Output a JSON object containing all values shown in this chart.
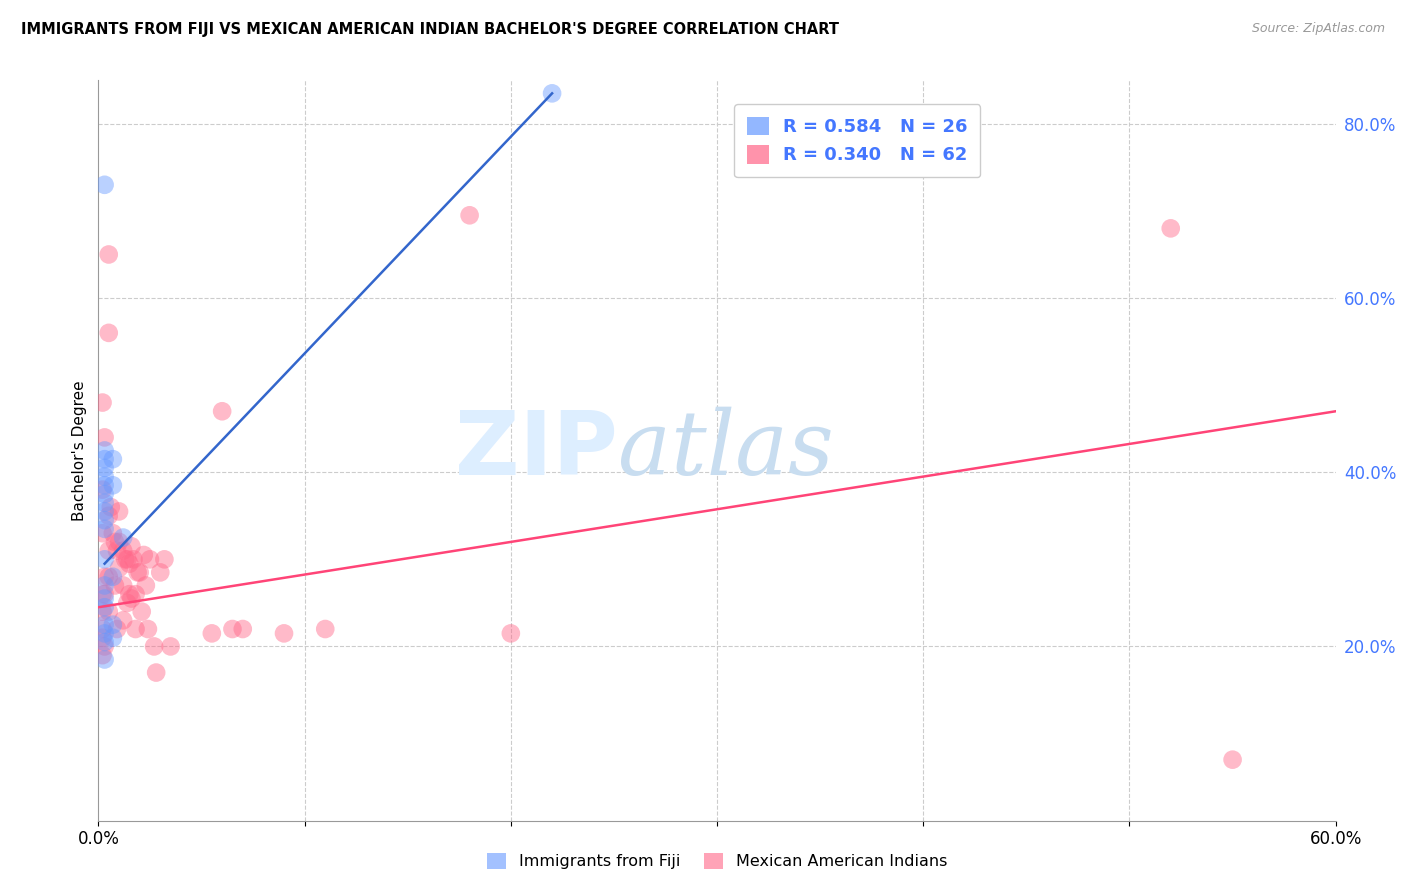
{
  "title": "IMMIGRANTS FROM FIJI VS MEXICAN AMERICAN INDIAN BACHELOR'S DEGREE CORRELATION CHART",
  "source": "Source: ZipAtlas.com",
  "ylabel_label": "Bachelor's Degree",
  "xlim": [
    0.0,
    0.6
  ],
  "ylim": [
    0.0,
    0.85
  ],
  "fiji_R": 0.584,
  "fiji_N": 26,
  "mexican_R": 0.34,
  "mexican_N": 62,
  "fiji_color": "#6699ff",
  "mexican_color": "#ff6688",
  "trendline_fiji_color": "#3366cc",
  "trendline_mexican_color": "#ff4477",
  "watermark_zip": "ZIP",
  "watermark_atlas": "atlas",
  "watermark_color": "#ddeeff",
  "fiji_points_x": [
    0.003,
    0.003,
    0.003,
    0.003,
    0.003,
    0.003,
    0.003,
    0.003,
    0.003,
    0.003,
    0.003,
    0.003,
    0.003,
    0.003,
    0.003,
    0.003,
    0.003,
    0.003,
    0.003,
    0.007,
    0.007,
    0.007,
    0.007,
    0.007,
    0.012,
    0.22
  ],
  "fiji_points_y": [
    0.73,
    0.425,
    0.415,
    0.405,
    0.395,
    0.385,
    0.375,
    0.365,
    0.355,
    0.345,
    0.335,
    0.3,
    0.27,
    0.255,
    0.245,
    0.225,
    0.215,
    0.205,
    0.185,
    0.415,
    0.385,
    0.28,
    0.225,
    0.21,
    0.325,
    0.835
  ],
  "mexican_points_x": [
    0.002,
    0.002,
    0.002,
    0.002,
    0.002,
    0.002,
    0.002,
    0.002,
    0.003,
    0.003,
    0.003,
    0.003,
    0.005,
    0.005,
    0.005,
    0.005,
    0.005,
    0.005,
    0.006,
    0.007,
    0.008,
    0.008,
    0.009,
    0.009,
    0.01,
    0.01,
    0.01,
    0.012,
    0.012,
    0.012,
    0.013,
    0.014,
    0.014,
    0.015,
    0.015,
    0.016,
    0.016,
    0.017,
    0.018,
    0.018,
    0.019,
    0.02,
    0.021,
    0.022,
    0.023,
    0.024,
    0.025,
    0.027,
    0.028,
    0.03,
    0.032,
    0.035,
    0.055,
    0.06,
    0.065,
    0.07,
    0.09,
    0.11,
    0.18,
    0.2,
    0.52,
    0.55
  ],
  "mexican_points_y": [
    0.48,
    0.38,
    0.33,
    0.26,
    0.24,
    0.22,
    0.21,
    0.19,
    0.44,
    0.28,
    0.26,
    0.2,
    0.65,
    0.56,
    0.35,
    0.31,
    0.28,
    0.24,
    0.36,
    0.33,
    0.32,
    0.27,
    0.31,
    0.22,
    0.355,
    0.32,
    0.29,
    0.31,
    0.27,
    0.23,
    0.3,
    0.3,
    0.25,
    0.295,
    0.26,
    0.315,
    0.255,
    0.3,
    0.26,
    0.22,
    0.285,
    0.285,
    0.24,
    0.305,
    0.27,
    0.22,
    0.3,
    0.2,
    0.17,
    0.285,
    0.3,
    0.2,
    0.215,
    0.47,
    0.22,
    0.22,
    0.215,
    0.22,
    0.695,
    0.215,
    0.68,
    0.07
  ],
  "fiji_trend_x": [
    0.003,
    0.22
  ],
  "fiji_trend_y": [
    0.295,
    0.835
  ],
  "mexican_trend_x": [
    0.0,
    0.6
  ],
  "mexican_trend_y": [
    0.245,
    0.47
  ]
}
